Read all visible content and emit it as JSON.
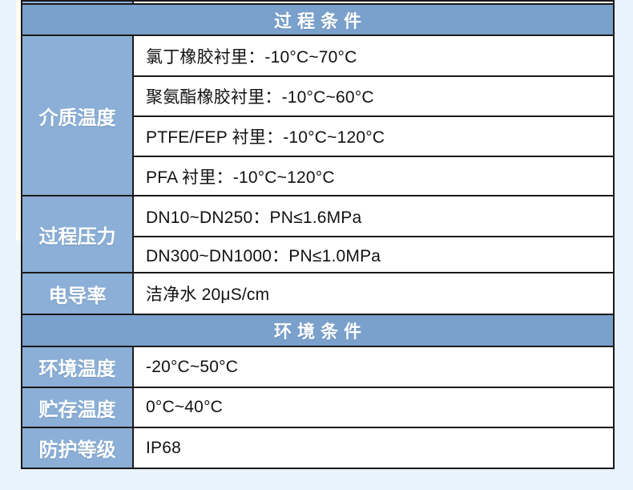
{
  "page": {
    "background_color": "#e8f3fc",
    "table_border_color": "#1a1a1a",
    "header_bg_color": "#7aa0cc",
    "label_bg_color": "#8bafd6"
  },
  "table": {
    "sections": [
      {
        "title": "过程条件",
        "groups": [
          {
            "label": "介质温度",
            "rows": [
              "氯丁橡胶衬里：-10°C~70°C",
              "聚氨酯橡胶衬里：-10°C~60°C",
              "PTFE/FEP 衬里：-10°C~120°C",
              "PFA 衬里：-10°C~120°C"
            ]
          },
          {
            "label": "过程压力",
            "rows": [
              "DN10~DN250：PN≤1.6MPa",
              "DN300~DN1000：PN≤1.0MPa"
            ]
          },
          {
            "label": "电导率",
            "rows": [
              "洁净水 20μS/cm"
            ]
          }
        ]
      },
      {
        "title": "环境条件",
        "groups": [
          {
            "label": "环境温度",
            "rows": [
              "-20°C~50°C"
            ]
          },
          {
            "label": "贮存温度",
            "rows": [
              "0°C~40°C"
            ]
          },
          {
            "label": "防护等级",
            "rows": [
              "IP68"
            ]
          }
        ]
      }
    ]
  }
}
